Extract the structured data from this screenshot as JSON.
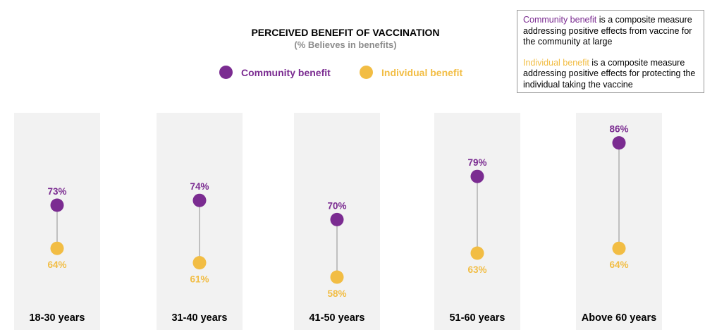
{
  "chart_data": {
    "type": "dumbbell",
    "title": "PERCEIVED BENEFIT OF VACCINATION",
    "subtitle": "(% Believes in benefits)",
    "categories": [
      "18-30 years",
      "31-40 years",
      "41-50 years",
      "51-60 years",
      "Above 60 years"
    ],
    "series": [
      {
        "name": "Community benefit",
        "color": "#7b2c91",
        "values": [
          73,
          74,
          70,
          79,
          86
        ]
      },
      {
        "name": "Individual benefit",
        "color": "#f2bd44",
        "values": [
          64,
          61,
          58,
          63,
          64
        ]
      }
    ],
    "value_suffix": "%"
  },
  "note": {
    "community_term": "Community benefit",
    "community_text": " is a composite measure addressing positive effects from vaccine for the community at large",
    "individual_term": "Individual benefit",
    "individual_text": " is a composite measure addressing positive effects for protecting the individual taking the vaccine"
  }
}
